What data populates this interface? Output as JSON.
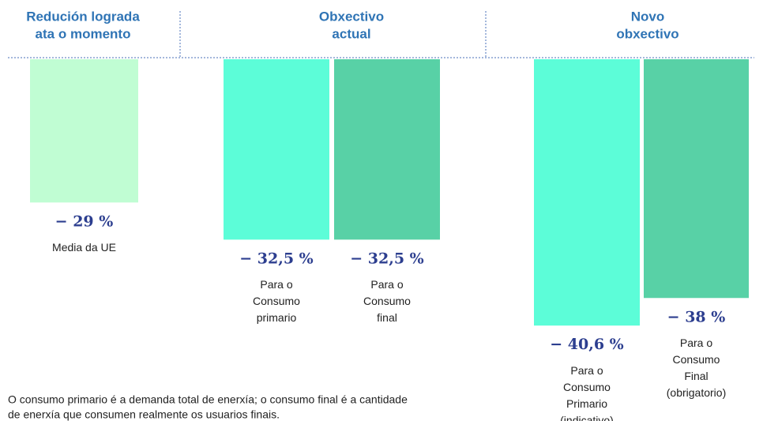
{
  "chart_data": {
    "type": "bar",
    "groups": [
      [
        "Redución lograda",
        "ata o momento"
      ],
      [
        "Obxectivo",
        "actual"
      ],
      [
        "Novo",
        "obxectivo"
      ]
    ],
    "categories": [
      [
        "Media da UE"
      ],
      [
        "Para o",
        "Consumo",
        "primario"
      ],
      [
        "Para o",
        "Consumo",
        "final"
      ],
      [
        "Para o",
        "Consumo",
        "Primario",
        "(indicativo)"
      ],
      [
        "Para o",
        "Consumo",
        "Final",
        "(obrigatorio)"
      ]
    ],
    "values": [
      -29,
      -32.5,
      -32.5,
      -40.6,
      -38
    ],
    "value_labels": [
      "− 29 %",
      "− 32,5 %",
      "− 32,5 %",
      "− 40,6 %",
      "− 38 %"
    ],
    "colors": [
      "#c0fdd3",
      "#5cfdd8",
      "#58d1a6",
      "#5cfdd8",
      "#58d1a6"
    ],
    "ylim": [
      -15.5,
      -42
    ],
    "footnote": [
      "O consumo primario é a demanda total de enerxía; o consumo final é a cantidade",
      "de enerxía que consumen realmente os usuarios finais."
    ]
  }
}
